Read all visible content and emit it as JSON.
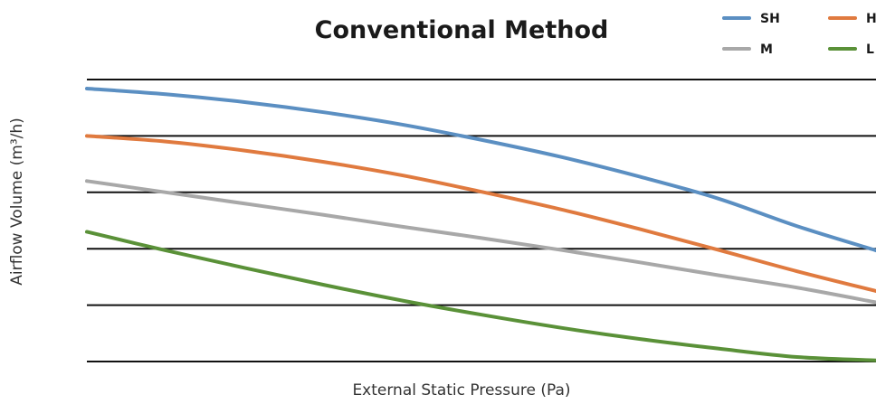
{
  "chart_data": {
    "type": "line",
    "title": "Conventional Method",
    "xlabel": "External Static Pressure (Pa)",
    "ylabel": "Airflow Volume (m³/h)",
    "xlim": [
      0,
      1
    ],
    "ylim": [
      0,
      5
    ],
    "grid": "horizontal",
    "legend_position": "top-right",
    "series": [
      {
        "name": "SH",
        "color": "#5b8fc2",
        "points": [
          [
            0,
            4.84
          ],
          [
            0.1,
            4.74
          ],
          [
            0.2,
            4.6
          ],
          [
            0.3,
            4.42
          ],
          [
            0.4,
            4.2
          ],
          [
            0.5,
            3.93
          ],
          [
            0.6,
            3.63
          ],
          [
            0.7,
            3.28
          ],
          [
            0.8,
            2.89
          ],
          [
            0.9,
            2.4
          ],
          [
            1.0,
            1.97
          ]
        ]
      },
      {
        "name": "H",
        "color": "#e07a3f",
        "points": [
          [
            0,
            4.0
          ],
          [
            0.1,
            3.9
          ],
          [
            0.2,
            3.74
          ],
          [
            0.3,
            3.54
          ],
          [
            0.4,
            3.3
          ],
          [
            0.5,
            3.01
          ],
          [
            0.6,
            2.7
          ],
          [
            0.7,
            2.35
          ],
          [
            0.8,
            1.98
          ],
          [
            0.9,
            1.6
          ],
          [
            1.0,
            1.25
          ]
        ]
      },
      {
        "name": "M",
        "color": "#a8a8a8",
        "points": [
          [
            0,
            3.2
          ],
          [
            0.1,
            3.0
          ],
          [
            0.2,
            2.8
          ],
          [
            0.3,
            2.6
          ],
          [
            0.4,
            2.39
          ],
          [
            0.5,
            2.19
          ],
          [
            0.6,
            1.98
          ],
          [
            0.7,
            1.76
          ],
          [
            0.8,
            1.53
          ],
          [
            0.9,
            1.31
          ],
          [
            1.0,
            1.05
          ]
        ]
      },
      {
        "name": "L",
        "color": "#5a9138",
        "points": [
          [
            0,
            2.3
          ],
          [
            0.1,
            1.97
          ],
          [
            0.2,
            1.66
          ],
          [
            0.3,
            1.36
          ],
          [
            0.4,
            1.08
          ],
          [
            0.5,
            0.83
          ],
          [
            0.6,
            0.6
          ],
          [
            0.7,
            0.4
          ],
          [
            0.8,
            0.23
          ],
          [
            0.9,
            0.08
          ],
          [
            1.0,
            0.02
          ]
        ]
      }
    ],
    "gridlines": [
      0,
      1,
      2,
      3,
      4,
      5
    ]
  }
}
